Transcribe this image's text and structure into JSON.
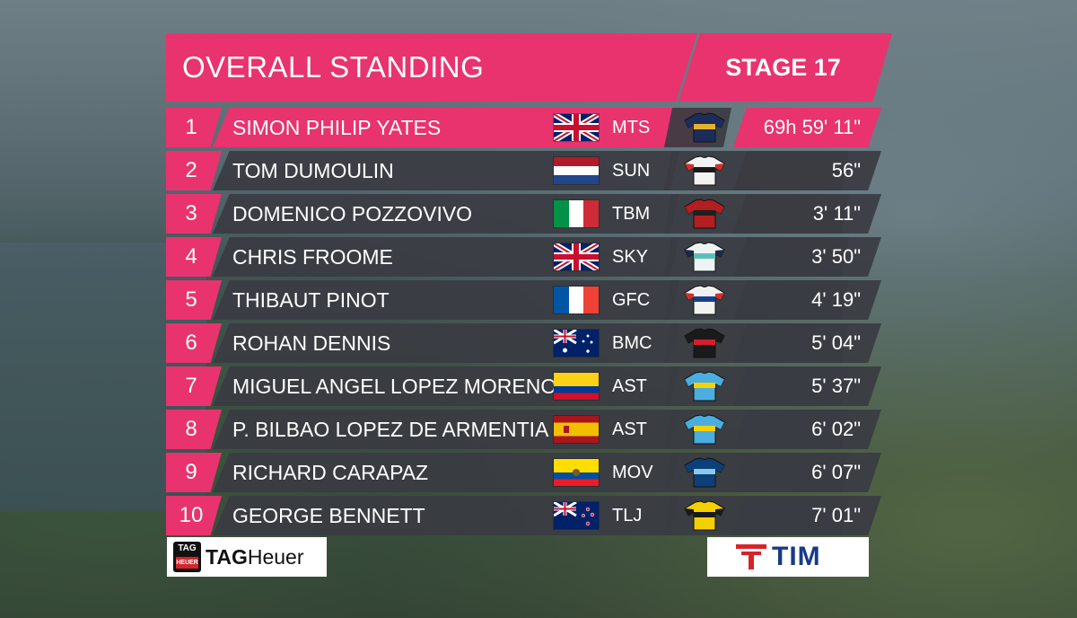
{
  "header": {
    "title": "OVERALL STANDING",
    "stage": "STAGE 17"
  },
  "colors": {
    "accent": "#e8336f",
    "row_bg": "#3a3c42"
  },
  "standings": [
    {
      "pos": "1",
      "name": "SIMON PHILIP YATES",
      "flag": "GBR",
      "team": "MTS",
      "time": "69h 59' 11\"",
      "jersey": "mitchelton-scott-jersey"
    },
    {
      "pos": "2",
      "name": "TOM DUMOULIN",
      "flag": "NED",
      "team": "SUN",
      "time": "56\"",
      "jersey": "sunweb-jersey"
    },
    {
      "pos": "3",
      "name": "DOMENICO POZZOVIVO",
      "flag": "ITA",
      "team": "TBM",
      "time": "3' 11\"",
      "jersey": "bahrain-merida-jersey"
    },
    {
      "pos": "4",
      "name": "CHRIS FROOME",
      "flag": "GBR",
      "team": "SKY",
      "time": "3' 50\"",
      "jersey": "sky-jersey"
    },
    {
      "pos": "5",
      "name": "THIBAUT PINOT",
      "flag": "FRA",
      "team": "GFC",
      "time": "4' 19\"",
      "jersey": "groupama-fdj-jersey"
    },
    {
      "pos": "6",
      "name": "ROHAN DENNIS",
      "flag": "AUS",
      "team": "BMC",
      "time": "5' 04\"",
      "jersey": "bmc-jersey"
    },
    {
      "pos": "7",
      "name": "MIGUEL ANGEL LOPEZ MORENO",
      "flag": "COL",
      "team": "AST",
      "time": "5' 37\"",
      "jersey": "astana-jersey"
    },
    {
      "pos": "8",
      "name": "P. BILBAO LOPEZ DE ARMENTIA",
      "flag": "ESP",
      "team": "AST",
      "time": "6' 02\"",
      "jersey": "astana-jersey"
    },
    {
      "pos": "9",
      "name": "RICHARD CARAPAZ",
      "flag": "ECU",
      "team": "MOV",
      "time": "6' 07\"",
      "jersey": "movistar-jersey"
    },
    {
      "pos": "10",
      "name": "GEORGE BENNETT",
      "flag": "NZL",
      "team": "TLJ",
      "time": "7' 01\"",
      "jersey": "lotto-jumbo-jersey"
    }
  ],
  "sponsors": {
    "left_brand": "TAG",
    "left_brand_sub": "HEUER",
    "left_text_bold": "TAG",
    "left_text_light": "Heuer",
    "right_text": "TIM"
  }
}
